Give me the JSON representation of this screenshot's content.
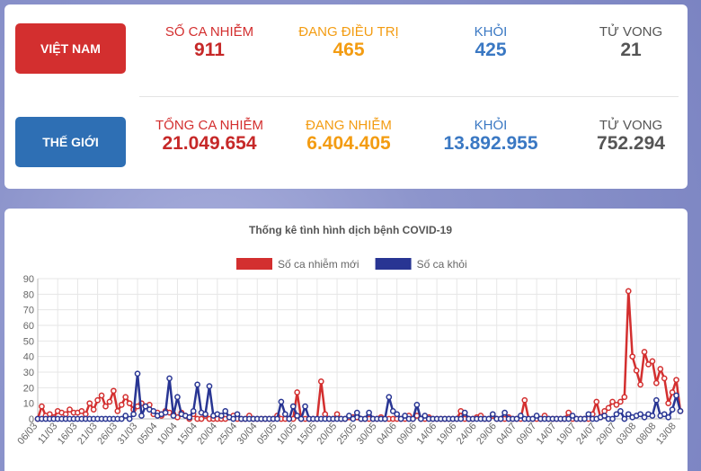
{
  "stats": {
    "vietnam": {
      "label": "VIỆT NAM",
      "items": [
        {
          "label": "SỐ CA NHIỄM",
          "value": "911"
        },
        {
          "label": "ĐANG ĐIỀU TRỊ",
          "value": "465"
        },
        {
          "label": "KHỎI",
          "value": "425"
        },
        {
          "label": "TỬ VONG",
          "value": "21"
        }
      ]
    },
    "world": {
      "label": "THẾ GIỚI",
      "items": [
        {
          "label": "TỔNG CA NHIỄM",
          "value": "21.049.654"
        },
        {
          "label": "ĐANG NHIỄM",
          "value": "6.404.405"
        },
        {
          "label": "KHỎI",
          "value": "13.892.955"
        },
        {
          "label": "TỬ VONG",
          "value": "752.294"
        }
      ]
    }
  },
  "chart_data": {
    "type": "line",
    "title": "Thống kê tình hình dịch bệnh COVID-19",
    "categories": [
      "06/03",
      null,
      null,
      null,
      null,
      "11/03",
      null,
      null,
      null,
      null,
      "16/03",
      null,
      null,
      null,
      null,
      "21/03",
      null,
      null,
      null,
      null,
      "26/03",
      null,
      null,
      null,
      null,
      "31/03",
      null,
      null,
      null,
      null,
      "05/04",
      null,
      null,
      null,
      null,
      "10/04",
      null,
      null,
      null,
      null,
      "15/04",
      null,
      null,
      null,
      null,
      "20/04",
      null,
      null,
      null,
      null,
      "25/04",
      null,
      null,
      null,
      null,
      "30/04",
      null,
      null,
      null,
      null,
      "05/05",
      null,
      null,
      null,
      null,
      "10/05",
      null,
      null,
      null,
      null,
      "15/05",
      null,
      null,
      null,
      null,
      "20/05",
      null,
      null,
      null,
      null,
      "25/05",
      null,
      null,
      null,
      null,
      "30/05",
      null,
      null,
      null,
      null,
      "04/06",
      null,
      null,
      null,
      null,
      "09/06",
      null,
      null,
      null,
      null,
      "14/06",
      null,
      null,
      null,
      null,
      "19/06",
      null,
      null,
      null,
      null,
      "24/06",
      null,
      null,
      null,
      null,
      "29/06",
      null,
      null,
      null,
      null,
      "04/07",
      null,
      null,
      null,
      null,
      "09/07",
      null,
      null,
      null,
      null,
      "14/07",
      null,
      null,
      null,
      null,
      "19/07",
      null,
      null,
      null,
      null,
      "24/07",
      null,
      null,
      null,
      null,
      "29/07",
      null,
      null,
      null,
      null,
      "03/08",
      null,
      null,
      null,
      null,
      "08/08",
      null,
      null,
      null,
      null,
      "13/08",
      null
    ],
    "series": [
      {
        "name": "Số ca nhiễm mới",
        "color": "#d32f2f",
        "values": [
          0,
          8,
          2,
          3,
          1,
          5,
          4,
          3,
          6,
          4,
          4,
          5,
          3,
          10,
          6,
          12,
          15,
          8,
          11,
          18,
          5,
          9,
          14,
          10,
          6,
          8,
          10,
          8,
          9,
          3,
          4,
          2,
          5,
          4,
          3,
          1,
          4,
          2,
          0,
          3,
          0,
          0,
          2,
          0,
          0,
          0,
          0,
          0,
          1,
          2,
          0,
          0,
          0,
          2,
          0,
          0,
          0,
          0,
          0,
          0,
          2,
          0,
          0,
          0,
          0,
          17,
          0,
          0,
          0,
          0,
          0,
          24,
          3,
          0,
          0,
          3,
          0,
          0,
          1,
          1,
          1,
          0,
          0,
          0,
          0,
          0,
          1,
          0,
          0,
          0,
          0,
          0,
          0,
          2,
          0,
          2,
          0,
          0,
          1,
          0,
          0,
          0,
          0,
          0,
          0,
          0,
          5,
          0,
          0,
          0,
          1,
          2,
          0,
          0,
          2,
          0,
          0,
          0,
          1,
          0,
          0,
          0,
          12,
          0,
          0,
          0,
          0,
          2,
          0,
          0,
          0,
          0,
          0,
          4,
          0,
          0,
          0,
          0,
          0,
          3,
          11,
          1,
          5,
          7,
          11,
          9,
          11,
          14,
          82,
          40,
          31,
          22,
          43,
          35,
          37,
          23,
          32,
          26,
          10,
          17,
          25,
          5
        ]
      },
      {
        "name": "Số ca khỏi",
        "color": "#283593",
        "values": [
          0,
          0,
          0,
          0,
          0,
          0,
          0,
          0,
          0,
          0,
          0,
          0,
          0,
          0,
          0,
          0,
          0,
          0,
          0,
          0,
          0,
          0,
          2,
          0,
          3,
          29,
          2,
          8,
          6,
          5,
          2,
          3,
          4,
          26,
          2,
          14,
          3,
          2,
          1,
          5,
          22,
          4,
          3,
          21,
          2,
          3,
          2,
          5,
          1,
          0,
          3,
          0,
          0,
          0,
          0,
          0,
          0,
          0,
          0,
          0,
          0,
          11,
          3,
          0,
          8,
          2,
          0,
          8,
          0,
          0,
          0,
          0,
          0,
          0,
          0,
          0,
          0,
          0,
          2,
          0,
          4,
          0,
          0,
          4,
          0,
          0,
          0,
          0,
          14,
          5,
          3,
          0,
          2,
          0,
          0,
          9,
          0,
          2,
          0,
          0,
          0,
          0,
          0,
          0,
          0,
          0,
          0,
          4,
          0,
          0,
          0,
          0,
          0,
          0,
          3,
          0,
          0,
          4,
          0,
          0,
          0,
          2,
          0,
          0,
          0,
          2,
          0,
          0,
          0,
          0,
          0,
          0,
          0,
          0,
          2,
          0,
          0,
          0,
          3,
          0,
          0,
          1,
          2,
          0,
          0,
          3,
          5,
          0,
          3,
          1,
          2,
          3,
          1,
          3,
          2,
          12,
          2,
          3,
          1,
          6,
          15,
          5
        ]
      }
    ],
    "ylim": [
      0,
      90
    ],
    "yticks": [
      0,
      10,
      20,
      30,
      40,
      50,
      60,
      70,
      80,
      90
    ],
    "grid": true,
    "legend": "top"
  }
}
